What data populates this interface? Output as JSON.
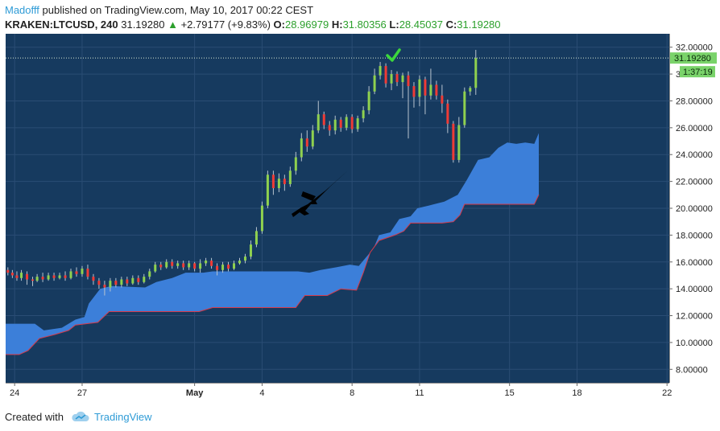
{
  "header": {
    "author": "Madofff",
    "published_text": "published on TradingView.com, May 10, 2017 00:22 CEST",
    "symbol": "KRAKEN:LTCUSD, 240",
    "last": "31.19280",
    "change": "+2.79177 (+9.83%)",
    "open_label": "O:",
    "open_value": "28.96979",
    "high_label": "H:",
    "high_value": "31.80356",
    "low_label": "L:",
    "low_value": "28.45037",
    "close_label": "C:",
    "close_value": "31.19280"
  },
  "footer": {
    "created_with": "Created with",
    "brand": "TradingView"
  },
  "colors": {
    "background": "#163a5f",
    "cloud": "#3c7fd9",
    "cloud_edge": "#d63a4a",
    "up_candle": "#8fd14f",
    "down_candle": "#ef3b36",
    "wick": "#b8c4cf",
    "axis_text": "#222222",
    "last_price": "#7ad36a",
    "check": "#3cd83c"
  },
  "chart_data": {
    "type": "candlestick",
    "x_tick_labels": [
      "24",
      "27",
      "May",
      "4",
      "8",
      "11",
      "15",
      "18",
      "22"
    ],
    "x_tick_days": [
      -7,
      -4,
      1,
      4,
      8,
      11,
      15,
      18,
      22
    ],
    "y_tick_labels": [
      "8.00000",
      "10.00000",
      "12.00000",
      "14.00000",
      "16.00000",
      "18.00000",
      "20.00000",
      "22.00000",
      "24.00000",
      "26.00000",
      "28.00000",
      "30.00000",
      "32.00000"
    ],
    "ylim": [
      7.0,
      33.0
    ],
    "xlim": [
      -7.4,
      22.1
    ],
    "last_price": 31.1928,
    "last_price_label": "31.19280",
    "countdown_label": "1:37:19",
    "cloud": {
      "upper": [
        [
          -8,
          11.4
        ],
        [
          -6.1,
          11.4
        ],
        [
          -5.7,
          10.9
        ],
        [
          -4.9,
          11.1
        ],
        [
          -4.3,
          11.7
        ],
        [
          -3.9,
          11.9
        ],
        [
          -3.7,
          12.9
        ],
        [
          -3.2,
          14.0
        ],
        [
          -2.7,
          14.2
        ],
        [
          -1.2,
          14.1
        ],
        [
          -0.7,
          14.5
        ],
        [
          0,
          14.8
        ],
        [
          0.6,
          15.2
        ],
        [
          1.4,
          15.2
        ],
        [
          1.8,
          15.3
        ],
        [
          2.6,
          15.3
        ],
        [
          5.6,
          15.3
        ],
        [
          6.1,
          15.2
        ],
        [
          6.6,
          15.4
        ],
        [
          7.3,
          15.6
        ],
        [
          7.9,
          15.8
        ],
        [
          8.3,
          15.7
        ],
        [
          8.6,
          16.3
        ],
        [
          8.8,
          16.7
        ],
        [
          9.0,
          17.2
        ],
        [
          9.2,
          18.0
        ],
        [
          9.7,
          18.2
        ],
        [
          10.1,
          19.2
        ],
        [
          10.6,
          19.4
        ],
        [
          10.9,
          20.0
        ],
        [
          11.4,
          20.2
        ],
        [
          12.1,
          20.5
        ],
        [
          12.7,
          21.0
        ],
        [
          13.1,
          22.1
        ],
        [
          13.3,
          22.7
        ],
        [
          13.6,
          23.6
        ],
        [
          14.1,
          23.8
        ],
        [
          14.5,
          24.5
        ],
        [
          14.9,
          24.9
        ],
        [
          15.3,
          24.8
        ],
        [
          15.7,
          24.9
        ],
        [
          16.1,
          24.8
        ],
        [
          16.3,
          25.6
        ]
      ],
      "lower": [
        [
          16.3,
          21.0
        ],
        [
          16.1,
          20.3
        ],
        [
          13.0,
          20.3
        ],
        [
          12.8,
          19.5
        ],
        [
          12.5,
          19.0
        ],
        [
          12.0,
          18.9
        ],
        [
          10.6,
          18.9
        ],
        [
          10.3,
          18.3
        ],
        [
          9.9,
          18.0
        ],
        [
          9.2,
          17.6
        ],
        [
          8.8,
          16.7
        ],
        [
          8.5,
          15.2
        ],
        [
          8.2,
          13.9
        ],
        [
          7.5,
          14.0
        ],
        [
          6.9,
          13.5
        ],
        [
          5.9,
          13.5
        ],
        [
          5.5,
          12.6
        ],
        [
          2.7,
          12.6
        ],
        [
          1.8,
          12.6
        ],
        [
          1.2,
          12.3
        ],
        [
          -2.8,
          12.3
        ],
        [
          -3.3,
          11.5
        ],
        [
          -4.3,
          11.3
        ],
        [
          -4.6,
          10.9
        ],
        [
          -5.2,
          10.6
        ],
        [
          -5.9,
          10.3
        ],
        [
          -6.4,
          9.4
        ],
        [
          -6.8,
          9.1
        ],
        [
          -8,
          9.1
        ]
      ]
    },
    "candles": [
      [
        -7.3,
        15.4,
        15.2,
        15.6,
        15.0
      ],
      [
        -7.1,
        15.2,
        15.0,
        15.4,
        14.8
      ],
      [
        -6.9,
        15.0,
        14.8,
        15.3,
        14.6
      ],
      [
        -6.7,
        14.8,
        15.2,
        15.4,
        14.6
      ],
      [
        -6.45,
        15.1,
        14.7,
        15.3,
        14.3
      ],
      [
        -6.2,
        14.7,
        14.6,
        14.9,
        14.2
      ],
      [
        -6.0,
        14.6,
        14.9,
        15.1,
        14.5
      ],
      [
        -5.75,
        14.9,
        14.7,
        15.2,
        14.5
      ],
      [
        -5.5,
        14.7,
        15.0,
        15.2,
        14.6
      ],
      [
        -5.25,
        15.0,
        14.8,
        15.2,
        14.6
      ],
      [
        -5.0,
        14.8,
        15.0,
        15.2,
        14.7
      ],
      [
        -4.75,
        15.0,
        14.8,
        15.3,
        14.6
      ],
      [
        -4.5,
        14.8,
        15.3,
        15.5,
        14.7
      ],
      [
        -4.25,
        15.3,
        15.1,
        15.6,
        14.9
      ],
      [
        -4.0,
        15.1,
        15.5,
        15.7,
        14.9
      ],
      [
        -3.75,
        15.5,
        14.9,
        15.8,
        14.7
      ],
      [
        -3.5,
        14.9,
        14.6,
        15.1,
        14.3
      ],
      [
        -3.25,
        14.6,
        14.3,
        14.8,
        14.0
      ],
      [
        -3.0,
        14.3,
        14.1,
        14.6,
        13.5
      ],
      [
        -2.75,
        14.1,
        14.6,
        14.8,
        13.8
      ],
      [
        -2.5,
        14.6,
        14.3,
        14.8,
        14.1
      ],
      [
        -2.25,
        14.3,
        14.7,
        14.9,
        14.1
      ],
      [
        -2.0,
        14.7,
        14.4,
        14.9,
        14.2
      ],
      [
        -1.75,
        14.4,
        14.8,
        15.0,
        14.3
      ],
      [
        -1.5,
        14.8,
        14.5,
        15.0,
        14.3
      ],
      [
        -1.25,
        14.5,
        14.9,
        15.1,
        14.4
      ],
      [
        -1.0,
        14.9,
        15.3,
        15.5,
        14.7
      ],
      [
        -0.75,
        15.3,
        15.8,
        16.0,
        15.2
      ],
      [
        -0.5,
        15.8,
        15.6,
        16.0,
        15.4
      ],
      [
        -0.25,
        15.6,
        16.0,
        16.2,
        15.5
      ],
      [
        0.0,
        16.0,
        15.7,
        16.2,
        15.5
      ],
      [
        0.25,
        15.7,
        15.9,
        16.1,
        15.5
      ],
      [
        0.5,
        15.9,
        15.6,
        16.1,
        15.4
      ],
      [
        0.75,
        15.6,
        15.9,
        16.1,
        15.4
      ],
      [
        1.0,
        15.9,
        15.5,
        16.0,
        15.3
      ],
      [
        1.25,
        15.5,
        15.9,
        16.2,
        15.2
      ],
      [
        1.5,
        15.9,
        16.1,
        16.3,
        15.7
      ],
      [
        1.75,
        16.1,
        15.7,
        16.3,
        15.5
      ],
      [
        2.0,
        15.7,
        15.4,
        15.9,
        15.0
      ],
      [
        2.25,
        15.4,
        15.8,
        16.0,
        15.2
      ],
      [
        2.5,
        15.8,
        15.5,
        16.0,
        15.3
      ],
      [
        2.75,
        15.5,
        15.9,
        16.1,
        15.4
      ],
      [
        3.0,
        15.9,
        16.1,
        16.3,
        15.8
      ],
      [
        3.25,
        16.1,
        16.4,
        16.6,
        15.9
      ],
      [
        3.5,
        16.4,
        17.3,
        17.6,
        16.2
      ],
      [
        3.75,
        17.3,
        18.3,
        18.6,
        17.1
      ],
      [
        4.0,
        18.3,
        20.2,
        20.5,
        18.1
      ],
      [
        4.25,
        20.2,
        22.5,
        22.8,
        20.0
      ],
      [
        4.5,
        22.5,
        21.5,
        22.8,
        21.0
      ],
      [
        4.75,
        21.5,
        22.2,
        22.6,
        21.2
      ],
      [
        5.0,
        22.2,
        21.8,
        22.5,
        21.3
      ],
      [
        5.25,
        21.8,
        22.8,
        23.1,
        21.6
      ],
      [
        5.5,
        22.8,
        23.8,
        24.2,
        22.5
      ],
      [
        5.75,
        23.8,
        25.2,
        25.6,
        23.5
      ],
      [
        6.0,
        25.2,
        24.6,
        25.8,
        24.2
      ],
      [
        6.25,
        24.6,
        25.8,
        26.2,
        24.4
      ],
      [
        6.5,
        25.8,
        27.0,
        28.0,
        25.6
      ],
      [
        6.75,
        27.0,
        26.2,
        27.2,
        25.9
      ],
      [
        7.0,
        26.2,
        25.8,
        26.5,
        25.4
      ],
      [
        7.25,
        25.8,
        26.6,
        26.9,
        25.5
      ],
      [
        7.5,
        26.6,
        26.0,
        26.8,
        25.7
      ],
      [
        7.75,
        26.0,
        26.8,
        27.0,
        25.8
      ],
      [
        8.0,
        26.8,
        25.9,
        27.0,
        25.6
      ],
      [
        8.25,
        25.9,
        26.7,
        26.9,
        25.7
      ],
      [
        8.5,
        26.7,
        27.3,
        27.6,
        26.4
      ],
      [
        8.75,
        27.3,
        28.7,
        29.1,
        27.0
      ],
      [
        9.0,
        28.7,
        29.9,
        30.4,
        28.5
      ],
      [
        9.25,
        29.9,
        30.6,
        30.9,
        29.6
      ],
      [
        9.5,
        30.6,
        29.3,
        30.8,
        29.0
      ],
      [
        9.75,
        29.3,
        30.0,
        30.3,
        28.8
      ],
      [
        10.0,
        30.0,
        29.4,
        30.2,
        29.1
      ],
      [
        10.25,
        29.4,
        29.9,
        30.1,
        28.2
      ],
      [
        10.5,
        29.9,
        29.1,
        30.2,
        25.2
      ],
      [
        10.75,
        29.1,
        28.3,
        29.4,
        27.5
      ],
      [
        11.0,
        28.3,
        29.6,
        29.9,
        27.6
      ],
      [
        11.25,
        29.6,
        28.4,
        29.8,
        27.0
      ],
      [
        11.5,
        28.4,
        29.2,
        30.4,
        28.1
      ],
      [
        11.75,
        29.2,
        28.4,
        29.5,
        28.1
      ],
      [
        12.0,
        28.4,
        27.8,
        29.2,
        27.1
      ],
      [
        12.25,
        27.8,
        26.3,
        28.1,
        25.6
      ],
      [
        12.5,
        26.3,
        23.6,
        26.5,
        23.4
      ],
      [
        12.75,
        23.6,
        26.2,
        26.8,
        23.4
      ],
      [
        13.0,
        26.2,
        28.7,
        29.0,
        26.0
      ],
      [
        13.25,
        28.7,
        28.97,
        29.1,
        28.4
      ],
      [
        13.5,
        28.97,
        31.19,
        31.8,
        28.45
      ]
    ],
    "title": "",
    "xlabel": "",
    "ylabel": "",
    "legend": "none",
    "annotations": [
      "black jet drawing",
      "green check mark"
    ]
  }
}
